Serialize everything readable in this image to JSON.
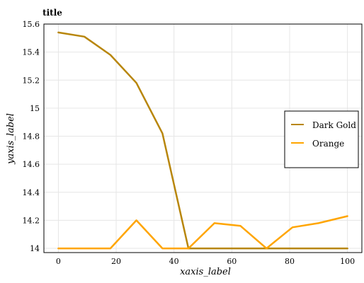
{
  "chart_data": {
    "type": "line",
    "title": "title",
    "xlabel": "xaxis_label",
    "ylabel": "yaxis_label",
    "xlim": [
      -5,
      105
    ],
    "ylim": [
      13.97,
      15.6
    ],
    "x_ticks": [
      0,
      20,
      40,
      60,
      80,
      100
    ],
    "y_ticks": [
      14.0,
      14.2,
      14.4,
      14.6,
      14.8,
      15.0,
      15.2,
      15.4,
      15.6
    ],
    "y_tick_labels": [
      "14",
      "14.2",
      "14.4",
      "14.6",
      "14.8",
      "15",
      "15.2",
      "15.4",
      "15.6"
    ],
    "grid": true,
    "legend_position": "right",
    "series": [
      {
        "name": "Dark Gold",
        "color": "#b8860b",
        "x": [
          0,
          9,
          18,
          27,
          36,
          45,
          54,
          63,
          72,
          81,
          90,
          100
        ],
        "y": [
          15.54,
          15.51,
          15.38,
          15.18,
          14.82,
          14.0,
          14.0,
          14.0,
          14.0,
          14.0,
          14.0,
          14.0
        ]
      },
      {
        "name": "Orange",
        "color": "#ffa500",
        "x": [
          0,
          9,
          18,
          27,
          36,
          45,
          54,
          63,
          72,
          81,
          90,
          100
        ],
        "y": [
          14.0,
          14.0,
          14.0,
          14.2,
          14.0,
          14.0,
          14.18,
          14.16,
          14.0,
          14.15,
          14.18,
          14.23
        ]
      }
    ]
  }
}
